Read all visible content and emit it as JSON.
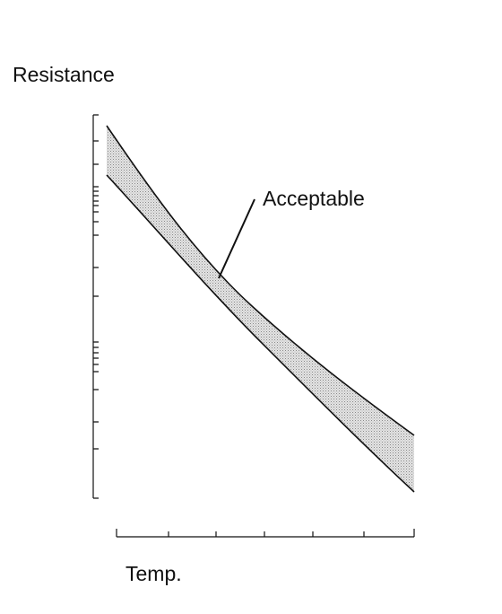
{
  "labels": {
    "y_axis": "Resistance",
    "annotation": "Acceptable",
    "x_axis": "Temp."
  }
}
